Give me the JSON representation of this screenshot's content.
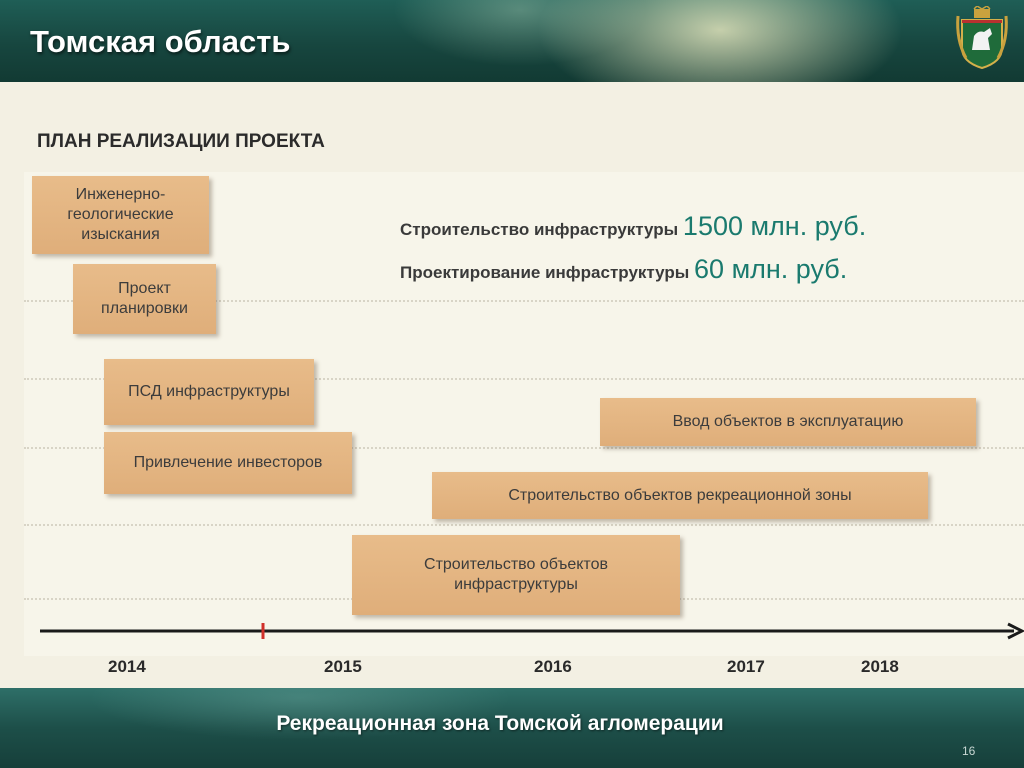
{
  "header": {
    "title": "Томская область",
    "emblem_icon": "coat-of-arms-icon"
  },
  "slide": {
    "title": "ПЛАН РЕАЛИЗАЦИИ ПРОЕКТА"
  },
  "stats": [
    {
      "label": "Строительство инфраструктуры",
      "value": "1500 млн. руб."
    },
    {
      "label": "Проектирование инфраструктуры",
      "value": "60 млн. руб."
    }
  ],
  "tasks": {
    "geo_survey": "Инженерно-\nгеологические\nизыскания",
    "planning_project": "Проект\nпланировки",
    "psd_infrastructure": "ПСД инфраструктуры",
    "investors": "Привлечение инвесторов",
    "commissioning": "Ввод объектов в эксплуатацию",
    "recreation_construction": "Строительство объектов рекреационной зоны",
    "infrastructure_construction": "Строительство объектов\nинфраструктуры"
  },
  "timeline": {
    "years": [
      "2014",
      "2015",
      "2016",
      "2017",
      "2018"
    ]
  },
  "footer": {
    "title": "Рекреационная зона Томской агломерации",
    "page_number": "16"
  },
  "colors": {
    "header_bg": "#17463f",
    "task_fill": "#e2b37f",
    "accent_value": "#1a7a6e",
    "today_marker": "#d0302a"
  }
}
